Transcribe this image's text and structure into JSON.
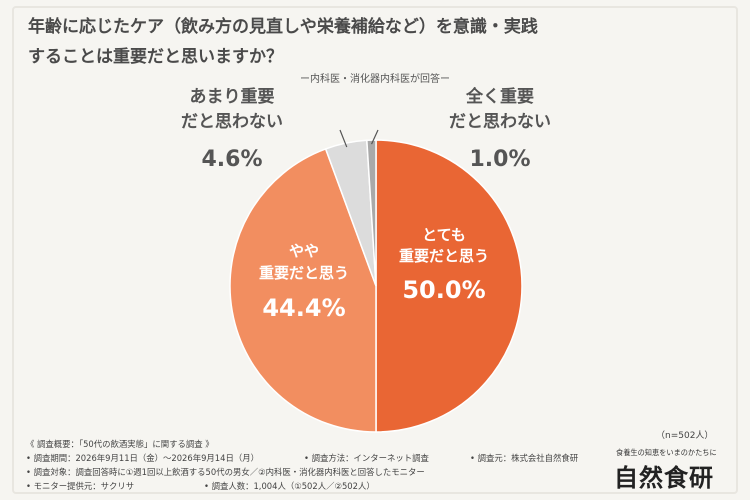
{
  "title_line1": "年齢に応じたケア（飲み方の見直しや栄養補給など）を意識・実践",
  "title_line2": "することは重要だと思いますか？",
  "subtitle": "ー内科医・消化器内科医が回答ー",
  "chart_data": {
    "type": "pie",
    "title": "年齢に応じたケア（飲み方の見直しや栄養補給など）を意識・実践することは重要だと思いますか？",
    "slices": [
      {
        "name_lines": [
          "とても",
          "重要だと思う"
        ],
        "value": 50.0,
        "label": "50.0%",
        "color": "#e96634"
      },
      {
        "name_lines": [
          "やや",
          "重要だと思う"
        ],
        "value": 44.4,
        "label": "44.4%",
        "color": "#f28e60"
      },
      {
        "name_lines": [
          "あまり重要",
          "だと思わない"
        ],
        "value": 4.6,
        "label": "4.6%",
        "color": "#dcdcdc"
      },
      {
        "name_lines": [
          "全く重要",
          "だと思わない"
        ],
        "value": 1.0,
        "label": "1.0%",
        "color": "#a9a9a9"
      }
    ]
  },
  "notes": {
    "header": "《 調査概要：「50代の飲酒実態」に関する調査 》",
    "period": "• 調査期間：2026年9月11日（金）〜2026年9月14日（月）",
    "method": "• 調査方法：インターネット調査",
    "org": "• 調査元：株式会社自然食研",
    "target": "• 調査対象：調査回答時に①週1回以上飲酒する50代の男女／②内科医・消化器内科医と回答したモニター",
    "provider": "• モニター提供元：サクリサ",
    "count": "• 調査人数：1,004人（①502人／②502人）"
  },
  "n_label": "（n=502人）",
  "brand": {
    "tagline": "食養生の知恵をいまのかたちに",
    "name": "自然食研"
  }
}
